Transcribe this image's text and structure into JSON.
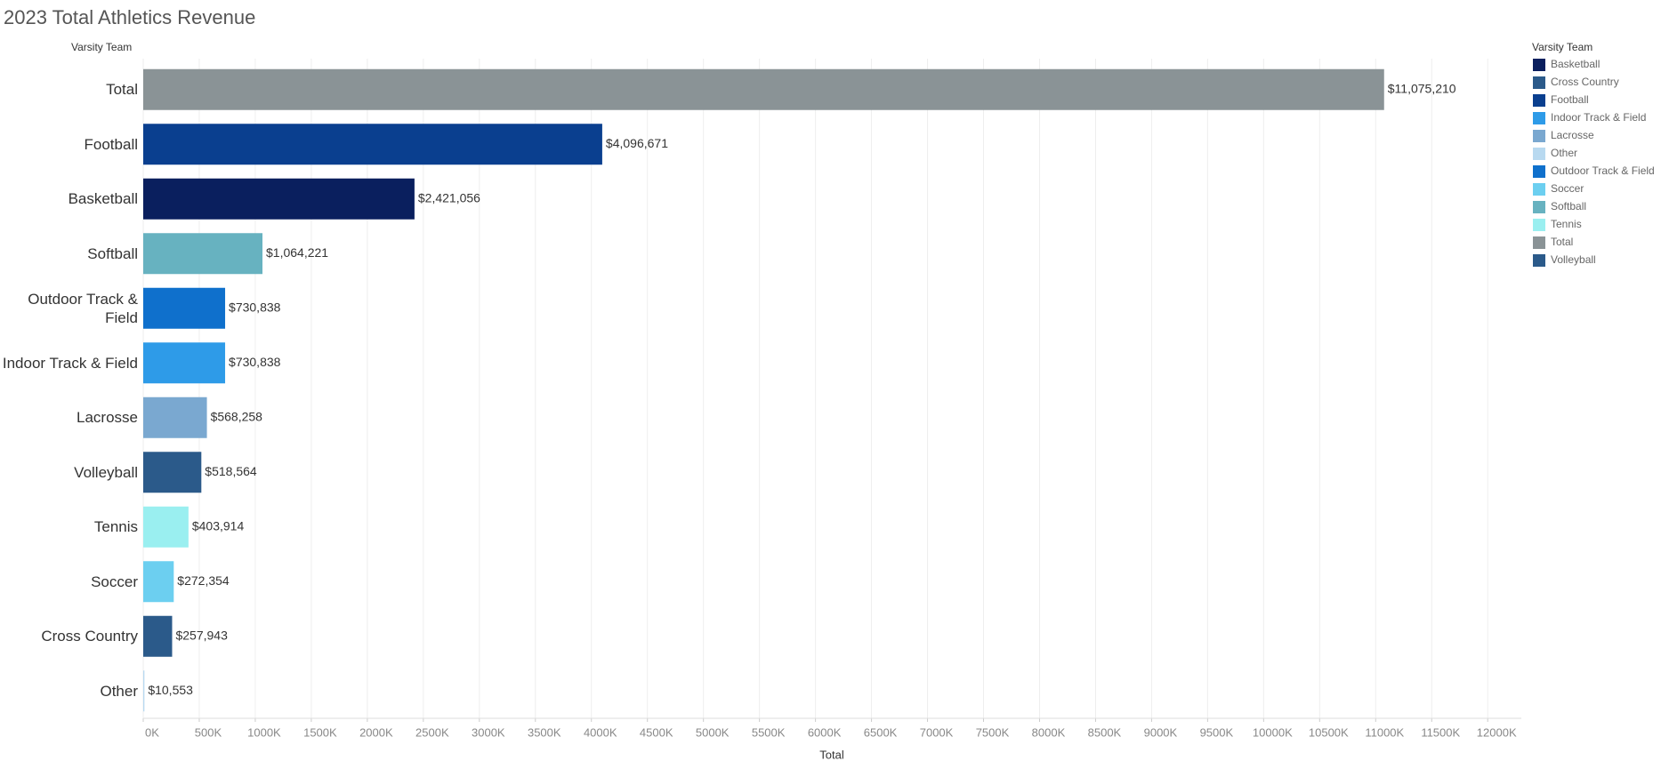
{
  "chart_data": {
    "type": "bar",
    "orientation": "horizontal",
    "title": "2023 Total Athletics Revenue",
    "y_axis_label": "Varsity Team",
    "x_axis_label": "Total",
    "categories": [
      "Total",
      "Football",
      "Basketball",
      "Softball",
      "Outdoor Track & Field",
      "Indoor Track & Field",
      "Lacrosse",
      "Volleyball",
      "Tennis",
      "Soccer",
      "Cross Country",
      "Other"
    ],
    "values": [
      11075210,
      4096671,
      2421056,
      1064221,
      730838,
      730838,
      568258,
      518564,
      403914,
      272354,
      257943,
      10553
    ],
    "value_labels": [
      "$11,075,210",
      "$4,096,671",
      "$2,421,056",
      "$1,064,221",
      "$730,838",
      "$730,838",
      "$568,258",
      "$518,564",
      "$403,914",
      "$272,354",
      "$257,943",
      "$10,553"
    ],
    "colors": [
      "#8a9396",
      "#0a3f8f",
      "#0a1f5e",
      "#67b2c0",
      "#0f70cc",
      "#2e9be8",
      "#7aa8d0",
      "#2b5a8a",
      "#9aeff0",
      "#6ccff0",
      "#2b5a8a",
      "#b8d9f0"
    ],
    "xlim": [
      0,
      12300000
    ],
    "xticks": [
      {
        "value": 0,
        "label": "0K"
      },
      {
        "value": 500000,
        "label": "500K"
      },
      {
        "value": 1000000,
        "label": "1000K"
      },
      {
        "value": 1500000,
        "label": "1500K"
      },
      {
        "value": 2000000,
        "label": "2000K"
      },
      {
        "value": 2500000,
        "label": "2500K"
      },
      {
        "value": 3000000,
        "label": "3000K"
      },
      {
        "value": 3500000,
        "label": "3500K"
      },
      {
        "value": 4000000,
        "label": "4000K"
      },
      {
        "value": 4500000,
        "label": "4500K"
      },
      {
        "value": 5000000,
        "label": "5000K"
      },
      {
        "value": 5500000,
        "label": "5500K"
      },
      {
        "value": 6000000,
        "label": "6000K"
      },
      {
        "value": 6500000,
        "label": "6500K"
      },
      {
        "value": 7000000,
        "label": "7000K"
      },
      {
        "value": 7500000,
        "label": "7500K"
      },
      {
        "value": 8000000,
        "label": "8000K"
      },
      {
        "value": 8500000,
        "label": "8500K"
      },
      {
        "value": 9000000,
        "label": "9000K"
      },
      {
        "value": 9500000,
        "label": "9500K"
      },
      {
        "value": 10000000,
        "label": "10000K"
      },
      {
        "value": 10500000,
        "label": "10500K"
      },
      {
        "value": 11000000,
        "label": "11000K"
      },
      {
        "value": 11500000,
        "label": "11500K"
      },
      {
        "value": 12000000,
        "label": "12000K"
      }
    ],
    "grid": true,
    "legend": {
      "position": "right",
      "title": "Varsity Team",
      "items": [
        {
          "name": "Basketball",
          "color": "#0a1f5e"
        },
        {
          "name": "Cross Country",
          "color": "#2b5a8a"
        },
        {
          "name": "Football",
          "color": "#0a3f8f"
        },
        {
          "name": "Indoor Track & Field",
          "color": "#2e9be8"
        },
        {
          "name": "Lacrosse",
          "color": "#7aa8d0"
        },
        {
          "name": "Other",
          "color": "#b8d9f0"
        },
        {
          "name": "Outdoor Track & Field",
          "color": "#0f70cc"
        },
        {
          "name": "Soccer",
          "color": "#6ccff0"
        },
        {
          "name": "Softball",
          "color": "#67b2c0"
        },
        {
          "name": "Tennis",
          "color": "#9aeff0"
        },
        {
          "name": "Total",
          "color": "#8a9396"
        },
        {
          "name": "Volleyball",
          "color": "#2b5a8a"
        }
      ]
    }
  }
}
